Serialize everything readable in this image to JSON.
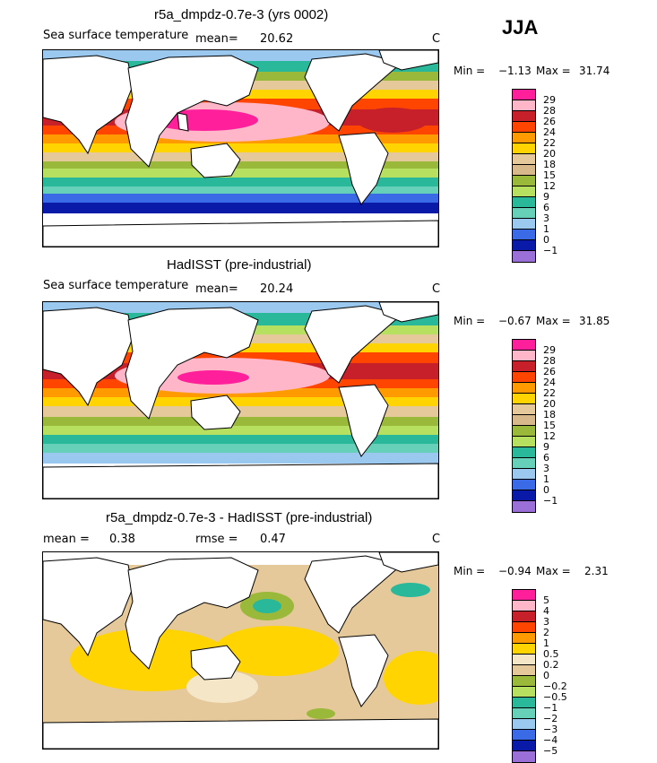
{
  "season": "JJA",
  "panels": [
    {
      "title": "r5a_dmpdz-0.7e-3 (yrs 0002)",
      "variable": "Sea surface temperature",
      "stat1_label": "mean=",
      "stat1_value": "20.62",
      "stat2_label": "",
      "stat2_value": "",
      "unit": "C",
      "min_label": "Min =",
      "min_value": "−1.13",
      "max_label": "Max =",
      "max_value": "31.74",
      "levels": [
        "29",
        "28",
        "26",
        "24",
        "22",
        "20",
        "18",
        "15",
        "12",
        "9",
        "6",
        "3",
        "1",
        "0",
        "−1"
      ]
    },
    {
      "title": "HadISST (pre-industrial)",
      "variable": "Sea surface temperature",
      "stat1_label": "mean=",
      "stat1_value": "20.24",
      "stat2_label": "",
      "stat2_value": "",
      "unit": "C",
      "min_label": "Min =",
      "min_value": "−0.67",
      "max_label": "Max =",
      "max_value": "31.85",
      "levels": [
        "29",
        "28",
        "26",
        "24",
        "22",
        "20",
        "18",
        "15",
        "12",
        "9",
        "6",
        "3",
        "1",
        "0",
        "−1"
      ]
    },
    {
      "title": "r5a_dmpdz-0.7e-3 - HadISST (pre-industrial)",
      "variable": "",
      "stat1_label": "mean =",
      "stat1_value": "0.38",
      "stat2_label": "rmse =",
      "stat2_value": "0.47",
      "unit": "C",
      "min_label": "Min =",
      "min_value": "−0.94",
      "max_label": "Max =",
      "max_value": "2.31",
      "levels": [
        "5",
        "4",
        "3",
        "2",
        "1",
        "0.5",
        "0.2",
        "0",
        "−0.2",
        "−0.5",
        "−1",
        "−2",
        "−3",
        "−4",
        "−5"
      ]
    }
  ],
  "palette": [
    "#ff1f9a",
    "#ffb6c8",
    "#c8202a",
    "#ff4500",
    "#ff9a00",
    "#ffd400",
    "#e6c99a",
    "#d8b98c",
    "#9ab83a",
    "#b8e060",
    "#2ab89a",
    "#66d0b8",
    "#9ac8ee",
    "#3a6ae6",
    "#0a1aa8",
    "#9a70d8"
  ]
}
